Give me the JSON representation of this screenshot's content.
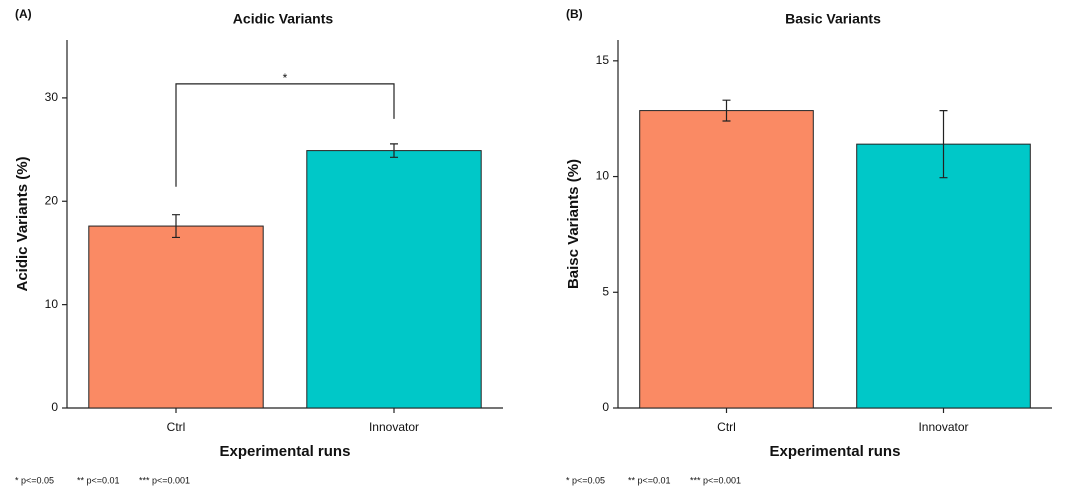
{
  "chart_data": [
    {
      "type": "bar",
      "panel_label": "(A)",
      "title": "Acidic Variants",
      "x_label": "Experimental runs",
      "y_label": "Acidic Variants (%)",
      "categories": [
        "Ctrl",
        "Innovator"
      ],
      "values": [
        17.6,
        24.9
      ],
      "errors": [
        1.1,
        0.65
      ],
      "colors": [
        "#fa8a64",
        "#00c8c8"
      ],
      "ylim": [
        0,
        35.6
      ],
      "yticks": [
        0,
        10,
        20,
        30
      ],
      "significance": "*",
      "footnote": [
        "* p<=0.05",
        "** p<=0.01",
        "*** p<=0.001"
      ]
    },
    {
      "type": "bar",
      "panel_label": "(B)",
      "title": "Basic Variants",
      "x_label": "Experimental runs",
      "y_label": "Baisc Variants (%)",
      "categories": [
        "Ctrl",
        "Innovator"
      ],
      "values": [
        12.85,
        11.4
      ],
      "errors": [
        0.45,
        1.45
      ],
      "colors": [
        "#fa8a64",
        "#00c8c8"
      ],
      "ylim": [
        0,
        15.9
      ],
      "yticks": [
        0,
        5,
        10,
        15
      ],
      "footnote": [
        "* p<=0.05",
        "** p<=0.01",
        "*** p<=0.001"
      ]
    }
  ]
}
